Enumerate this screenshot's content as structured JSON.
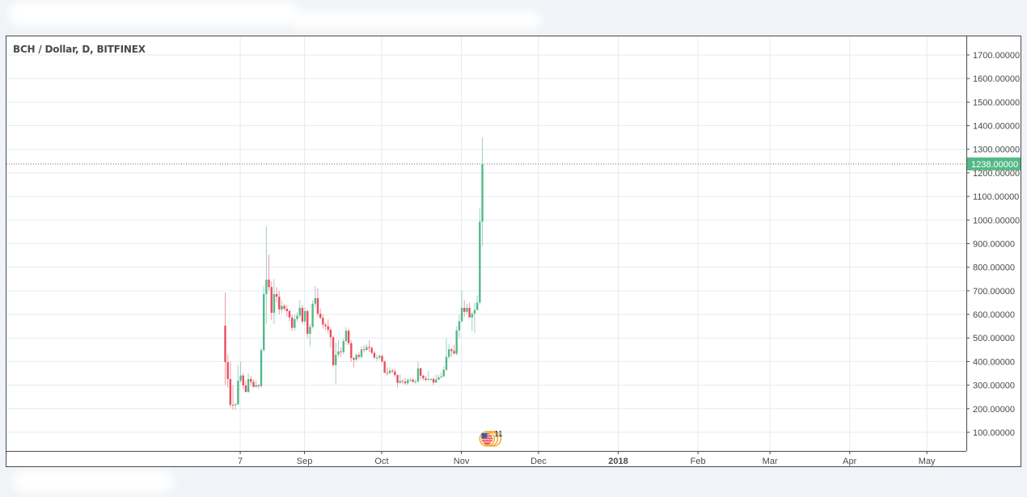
{
  "chart_data": {
    "type": "candlestick",
    "title": "BCH / Dollar, D, BITFINEX",
    "symbol": "BCH / Dollar",
    "interval": "D",
    "exchange": "BITFINEX",
    "start_date": "2017-08-01",
    "ylim": [
      0,
      1750
    ],
    "y_ticks": [
      100,
      200,
      300,
      400,
      500,
      600,
      700,
      800,
      900,
      1000,
      1100,
      1200,
      1300,
      1400,
      1500,
      1600,
      1700
    ],
    "y_tick_labels": [
      "100.00000",
      "200.00000",
      "300.00000",
      "400.00000",
      "500.00000",
      "600.00000",
      "700.00000",
      "800.00000",
      "900.00000",
      "1000.00000",
      "1100.00000",
      "1200.00000",
      "1300.00000",
      "1400.00000",
      "1500.00000",
      "1600.00000",
      "1700.00000"
    ],
    "x_ticks": [
      {
        "label": "7",
        "day_offset": 6,
        "bold": false
      },
      {
        "label": "Sep",
        "day_offset": 31,
        "bold": false
      },
      {
        "label": "Oct",
        "day_offset": 61,
        "bold": false
      },
      {
        "label": "Nov",
        "day_offset": 92,
        "bold": false
      },
      {
        "label": "Dec",
        "day_offset": 122,
        "bold": false
      },
      {
        "label": "2018",
        "day_offset": 153,
        "bold": true
      },
      {
        "label": "Feb",
        "day_offset": 184,
        "bold": false
      },
      {
        "label": "Mar",
        "day_offset": 212,
        "bold": false
      },
      {
        "label": "Apr",
        "day_offset": 243,
        "bold": false
      },
      {
        "label": "May",
        "day_offset": 273,
        "bold": false
      }
    ],
    "last_price": 1238,
    "last_price_label": "1238.00000",
    "event_marker": {
      "day_offset": 102,
      "label": "11"
    },
    "colors": {
      "up": "#53b987",
      "down": "#eb4d5c",
      "up_wick": "#9fcfcc",
      "down_wick": "#f29aa4",
      "grid": "#e3ebf2"
    },
    "candles_ohlc": [
      [
        552,
        693,
        300,
        398
      ],
      [
        398,
        430,
        290,
        326
      ],
      [
        326,
        400,
        205,
        217
      ],
      [
        217,
        300,
        195,
        215
      ],
      [
        215,
        225,
        195,
        219
      ],
      [
        219,
        385,
        215,
        319
      ],
      [
        319,
        400,
        310,
        341
      ],
      [
        341,
        350,
        285,
        299
      ],
      [
        299,
        320,
        270,
        271
      ],
      [
        271,
        350,
        268,
        326
      ],
      [
        326,
        340,
        300,
        314
      ],
      [
        314,
        325,
        290,
        293
      ],
      [
        293,
        320,
        290,
        300
      ],
      [
        300,
        305,
        285,
        296
      ],
      [
        296,
        460,
        290,
        449
      ],
      [
        449,
        720,
        440,
        686
      ],
      [
        686,
        974,
        560,
        747
      ],
      [
        747,
        853,
        700,
        716
      ],
      [
        716,
        740,
        575,
        607
      ],
      [
        607,
        750,
        560,
        686
      ],
      [
        686,
        715,
        650,
        675
      ],
      [
        675,
        700,
        600,
        621
      ],
      [
        621,
        660,
        605,
        636
      ],
      [
        636,
        645,
        615,
        624
      ],
      [
        624,
        640,
        590,
        614
      ],
      [
        614,
        620,
        570,
        587
      ],
      [
        587,
        600,
        530,
        543
      ],
      [
        543,
        600,
        530,
        580
      ],
      [
        580,
        610,
        570,
        595
      ],
      [
        595,
        660,
        585,
        628
      ],
      [
        628,
        640,
        560,
        570
      ],
      [
        570,
        630,
        555,
        614
      ],
      [
        614,
        620,
        500,
        518
      ],
      [
        518,
        560,
        465,
        547
      ],
      [
        547,
        660,
        540,
        645
      ],
      [
        645,
        720,
        630,
        669
      ],
      [
        669,
        710,
        590,
        603
      ],
      [
        603,
        625,
        580,
        585
      ],
      [
        585,
        600,
        540,
        557
      ],
      [
        557,
        565,
        535,
        550
      ],
      [
        550,
        580,
        520,
        535
      ],
      [
        535,
        545,
        460,
        503
      ],
      [
        503,
        510,
        380,
        385
      ],
      [
        385,
        480,
        305,
        429
      ],
      [
        429,
        490,
        420,
        443
      ],
      [
        443,
        460,
        420,
        440
      ],
      [
        440,
        500,
        430,
        487
      ],
      [
        487,
        545,
        470,
        531
      ],
      [
        531,
        540,
        470,
        478
      ],
      [
        478,
        490,
        400,
        415
      ],
      [
        415,
        420,
        375,
        408
      ],
      [
        408,
        435,
        400,
        428
      ],
      [
        428,
        440,
        410,
        420
      ],
      [
        420,
        465,
        415,
        452
      ],
      [
        452,
        470,
        440,
        449
      ],
      [
        449,
        475,
        445,
        462
      ],
      [
        462,
        490,
        440,
        458
      ],
      [
        458,
        465,
        430,
        437
      ],
      [
        437,
        445,
        410,
        417
      ],
      [
        417,
        430,
        400,
        417
      ],
      [
        417,
        430,
        410,
        424
      ],
      [
        424,
        430,
        395,
        400
      ],
      [
        400,
        405,
        350,
        353
      ],
      [
        353,
        375,
        340,
        351
      ],
      [
        351,
        375,
        345,
        362
      ],
      [
        362,
        370,
        350,
        358
      ],
      [
        358,
        370,
        335,
        343
      ],
      [
        343,
        345,
        290,
        310
      ],
      [
        310,
        345,
        305,
        318
      ],
      [
        318,
        325,
        305,
        315
      ],
      [
        315,
        330,
        300,
        308
      ],
      [
        308,
        330,
        300,
        322
      ],
      [
        322,
        330,
        315,
        323
      ],
      [
        323,
        330,
        310,
        314
      ],
      [
        314,
        325,
        305,
        316
      ],
      [
        316,
        400,
        310,
        371
      ],
      [
        371,
        375,
        325,
        340
      ],
      [
        340,
        345,
        320,
        329
      ],
      [
        329,
        340,
        315,
        323
      ],
      [
        323,
        360,
        320,
        326
      ],
      [
        326,
        330,
        318,
        326
      ],
      [
        326,
        335,
        300,
        311
      ],
      [
        311,
        345,
        310,
        324
      ],
      [
        324,
        345,
        320,
        333
      ],
      [
        333,
        355,
        330,
        337
      ],
      [
        337,
        380,
        335,
        365
      ],
      [
        365,
        500,
        360,
        420
      ],
      [
        420,
        475,
        410,
        452
      ],
      [
        452,
        460,
        420,
        445
      ],
      [
        445,
        470,
        430,
        434
      ],
      [
        434,
        550,
        425,
        532
      ],
      [
        532,
        600,
        500,
        571
      ],
      [
        571,
        700,
        565,
        628
      ],
      [
        628,
        660,
        590,
        611
      ],
      [
        611,
        645,
        600,
        628
      ],
      [
        628,
        650,
        590,
        587
      ],
      [
        587,
        610,
        530,
        603
      ],
      [
        603,
        650,
        522,
        619
      ],
      [
        619,
        680,
        615,
        650
      ],
      [
        650,
        1050,
        640,
        993
      ],
      [
        993,
        1350,
        890,
        1238
      ]
    ]
  }
}
